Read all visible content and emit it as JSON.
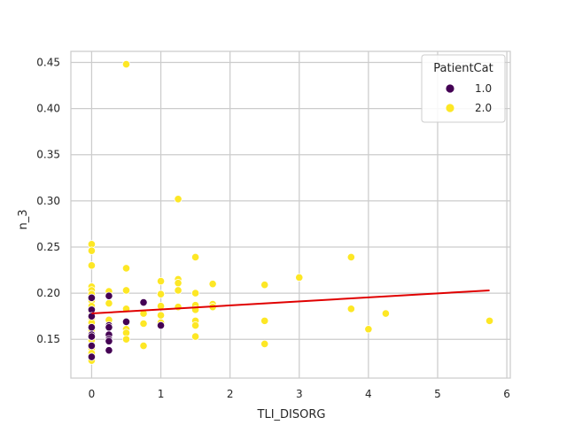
{
  "chart_data": {
    "type": "scatter",
    "xlabel": "TLI_DISORG",
    "ylabel": "n_3",
    "xlim": [
      -0.3,
      6.05
    ],
    "ylim": [
      0.108,
      0.462
    ],
    "xticks": [
      "0",
      "1",
      "2",
      "3",
      "4",
      "5",
      "6"
    ],
    "yticks": [
      "0.15",
      "0.20",
      "0.25",
      "0.30",
      "0.35",
      "0.40",
      "0.45"
    ],
    "xtick_values": [
      0,
      1,
      2,
      3,
      4,
      5,
      6
    ],
    "ytick_values": [
      0.15,
      0.2,
      0.25,
      0.3,
      0.35,
      0.4,
      0.45
    ],
    "grid": true,
    "legend": {
      "title": "PatientCat",
      "placement": "top-right",
      "entries": [
        {
          "label": "1.0",
          "color": "#440154"
        },
        {
          "label": "2.0",
          "color": "#fde725"
        }
      ]
    },
    "series": [
      {
        "name": "1.0",
        "color": "#440154",
        "points": [
          [
            0,
            0.195
          ],
          [
            0,
            0.182
          ],
          [
            0,
            0.175
          ],
          [
            0,
            0.163
          ],
          [
            0,
            0.155
          ],
          [
            0,
            0.153
          ],
          [
            0,
            0.143
          ],
          [
            0,
            0.131
          ],
          [
            0.25,
            0.197
          ],
          [
            0.25,
            0.165
          ],
          [
            0.25,
            0.163
          ],
          [
            0.25,
            0.155
          ],
          [
            0.25,
            0.15
          ],
          [
            0.25,
            0.148
          ],
          [
            0.25,
            0.138
          ],
          [
            0.5,
            0.169
          ],
          [
            0.75,
            0.19
          ],
          [
            1.0,
            0.165
          ]
        ]
      },
      {
        "name": "2.0",
        "color": "#fde725",
        "points": [
          [
            0,
            0.253
          ],
          [
            0,
            0.246
          ],
          [
            0,
            0.23
          ],
          [
            0,
            0.207
          ],
          [
            0,
            0.203
          ],
          [
            0,
            0.199
          ],
          [
            0,
            0.192
          ],
          [
            0,
            0.186
          ],
          [
            0,
            0.179
          ],
          [
            0,
            0.176
          ],
          [
            0,
            0.172
          ],
          [
            0,
            0.168
          ],
          [
            0,
            0.16
          ],
          [
            0,
            0.149
          ],
          [
            0,
            0.14
          ],
          [
            0,
            0.135
          ],
          [
            0,
            0.127
          ],
          [
            0.25,
            0.202
          ],
          [
            0.25,
            0.189
          ],
          [
            0.25,
            0.171
          ],
          [
            0.5,
            0.448
          ],
          [
            0.5,
            0.227
          ],
          [
            0.5,
            0.203
          ],
          [
            0.5,
            0.183
          ],
          [
            0.5,
            0.161
          ],
          [
            0.5,
            0.157
          ],
          [
            0.5,
            0.15
          ],
          [
            0.75,
            0.178
          ],
          [
            0.75,
            0.167
          ],
          [
            0.75,
            0.143
          ],
          [
            1.0,
            0.213
          ],
          [
            1.0,
            0.199
          ],
          [
            1.0,
            0.186
          ],
          [
            1.0,
            0.176
          ],
          [
            1.0,
            0.168
          ],
          [
            1.25,
            0.302
          ],
          [
            1.25,
            0.215
          ],
          [
            1.25,
            0.211
          ],
          [
            1.25,
            0.203
          ],
          [
            1.25,
            0.185
          ],
          [
            1.5,
            0.239
          ],
          [
            1.5,
            0.2
          ],
          [
            1.5,
            0.187
          ],
          [
            1.5,
            0.182
          ],
          [
            1.5,
            0.17
          ],
          [
            1.5,
            0.165
          ],
          [
            1.5,
            0.153
          ],
          [
            1.75,
            0.21
          ],
          [
            1.75,
            0.188
          ],
          [
            1.75,
            0.185
          ],
          [
            2.5,
            0.209
          ],
          [
            2.5,
            0.17
          ],
          [
            2.5,
            0.145
          ],
          [
            3.0,
            0.217
          ],
          [
            3.75,
            0.239
          ],
          [
            3.75,
            0.183
          ],
          [
            4.0,
            0.161
          ],
          [
            4.25,
            0.178
          ],
          [
            5.75,
            0.17
          ]
        ]
      }
    ],
    "regression_line": {
      "color": "#e00000",
      "x": [
        0,
        5.75
      ],
      "y": [
        0.178,
        0.203
      ]
    }
  }
}
